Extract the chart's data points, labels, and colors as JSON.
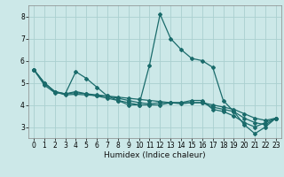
{
  "xlabel": "Humidex (Indice chaleur)",
  "ylabel": "",
  "bg_color": "#cce8e8",
  "grid_color": "#aad0d0",
  "line_color": "#1a6b6b",
  "marker": "D",
  "markersize": 2.0,
  "linewidth": 0.9,
  "xlim": [
    -0.5,
    23.5
  ],
  "ylim": [
    2.5,
    8.5
  ],
  "xticks": [
    0,
    1,
    2,
    3,
    4,
    5,
    6,
    7,
    8,
    9,
    10,
    11,
    12,
    13,
    14,
    15,
    16,
    17,
    18,
    19,
    20,
    21,
    22,
    23
  ],
  "yticks": [
    3,
    4,
    5,
    6,
    7,
    8
  ],
  "series": [
    [
      5.6,
      5.0,
      4.6,
      4.5,
      5.5,
      5.2,
      4.8,
      4.4,
      4.2,
      4.0,
      4.0,
      5.8,
      8.1,
      7.0,
      6.5,
      6.1,
      6.0,
      5.7,
      4.2,
      3.7,
      3.1,
      2.7,
      3.0,
      3.4
    ],
    [
      5.6,
      5.0,
      4.6,
      4.5,
      4.6,
      4.5,
      4.4,
      4.3,
      4.2,
      4.1,
      4.0,
      4.0,
      4.0,
      4.1,
      4.1,
      4.2,
      4.2,
      3.8,
      3.7,
      3.5,
      3.2,
      3.0,
      3.2,
      3.4
    ],
    [
      5.6,
      4.9,
      4.55,
      4.5,
      4.55,
      4.5,
      4.45,
      4.4,
      4.35,
      4.3,
      4.25,
      4.2,
      4.15,
      4.1,
      4.05,
      4.1,
      4.1,
      4.0,
      3.9,
      3.8,
      3.6,
      3.4,
      3.3,
      3.4
    ],
    [
      5.6,
      5.0,
      4.6,
      4.45,
      4.48,
      4.45,
      4.42,
      4.38,
      4.3,
      4.2,
      4.1,
      4.05,
      4.1,
      4.1,
      4.1,
      4.1,
      4.1,
      3.9,
      3.8,
      3.7,
      3.4,
      3.2,
      3.1,
      3.4
    ]
  ],
  "xlabel_fontsize": 6.5,
  "tick_fontsize": 5.5,
  "spine_color": "#888888"
}
